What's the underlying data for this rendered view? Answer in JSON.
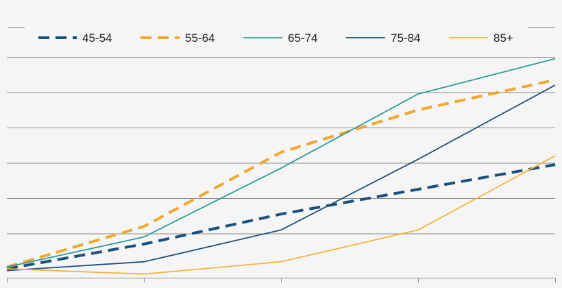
{
  "chart_data": {
    "type": "line",
    "title": "",
    "xlabel": "",
    "ylabel": "",
    "x": [
      1,
      2,
      3,
      4,
      5
    ],
    "ylim": [
      0,
      6
    ],
    "grid": true,
    "legend_position": "top",
    "series": [
      {
        "name": "45-54",
        "color": "#1b4f80",
        "dashed": true,
        "width": 4,
        "values": [
          0.0,
          0.7,
          1.55,
          2.25,
          2.95
        ]
      },
      {
        "name": "55-64",
        "color": "#f0a830",
        "dashed": true,
        "width": 4,
        "values": [
          0.05,
          1.2,
          3.3,
          4.5,
          5.35
        ]
      },
      {
        "name": "65-74",
        "color": "#2a9d9b",
        "dashed": false,
        "width": 1.8,
        "values": [
          0.05,
          0.9,
          2.85,
          4.95,
          5.95
        ]
      },
      {
        "name": "75-84",
        "color": "#1f4e79",
        "dashed": false,
        "width": 1.8,
        "values": [
          -0.05,
          0.2,
          1.1,
          3.1,
          5.2
        ]
      },
      {
        "name": "85+",
        "color": "#f2b43a",
        "dashed": false,
        "width": 1.8,
        "values": [
          0.0,
          -0.15,
          0.2,
          1.1,
          3.2
        ]
      }
    ]
  }
}
